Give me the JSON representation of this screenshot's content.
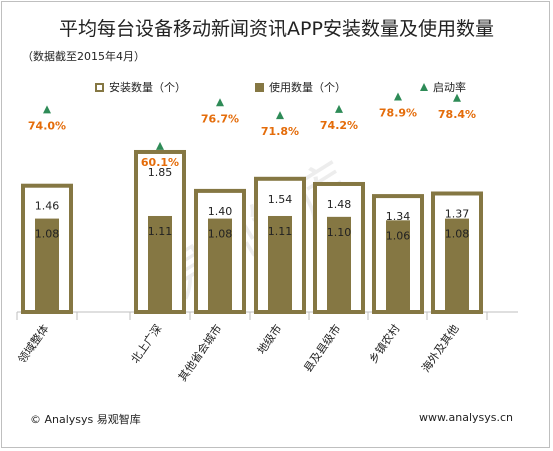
{
  "title": "平均每台设备移动新闻资讯APP安装数量及使用数量",
  "subtitle": "（数据截至2015年4月）",
  "legend": {
    "installed": "安装数量（个）",
    "used": "使用数量（个）",
    "rate": "启动率"
  },
  "watermark": "易观智库",
  "footer": {
    "left": "© Analysys 易观智库",
    "right": "www.analysys.cn"
  },
  "colors": {
    "bar": "#857743",
    "rate_label": "#e46c0a",
    "marker": "#2e8b57"
  },
  "chart_data": {
    "type": "bar",
    "categories": [
      "领域整体",
      "北上广深",
      "其他省会城市",
      "地级市",
      "县及县级市",
      "乡镇农村",
      "海外及其他"
    ],
    "series": [
      {
        "name": "安装数量（个）",
        "values": [
          1.46,
          1.85,
          1.4,
          1.54,
          1.48,
          1.34,
          1.37
        ]
      },
      {
        "name": "使用数量（个）",
        "values": [
          1.08,
          1.11,
          1.08,
          1.11,
          1.1,
          1.06,
          1.08
        ]
      },
      {
        "name": "启动率",
        "values": [
          74.0,
          60.1,
          76.7,
          71.8,
          74.2,
          78.9,
          78.4
        ],
        "unit": "%"
      }
    ],
    "installed_labels": [
      "1.46",
      "1.85",
      "1.40",
      "1.54",
      "1.48",
      "1.34",
      "1.37"
    ],
    "used_labels": [
      "1.08",
      "1.11",
      "1.08",
      "1.11",
      "1.10",
      "1.06",
      "1.08"
    ],
    "rate_labels": [
      "74.0%",
      "60.1%",
      "76.7%",
      "71.8%",
      "74.2%",
      "78.9%",
      "78.4%"
    ],
    "legend_position": "top"
  }
}
